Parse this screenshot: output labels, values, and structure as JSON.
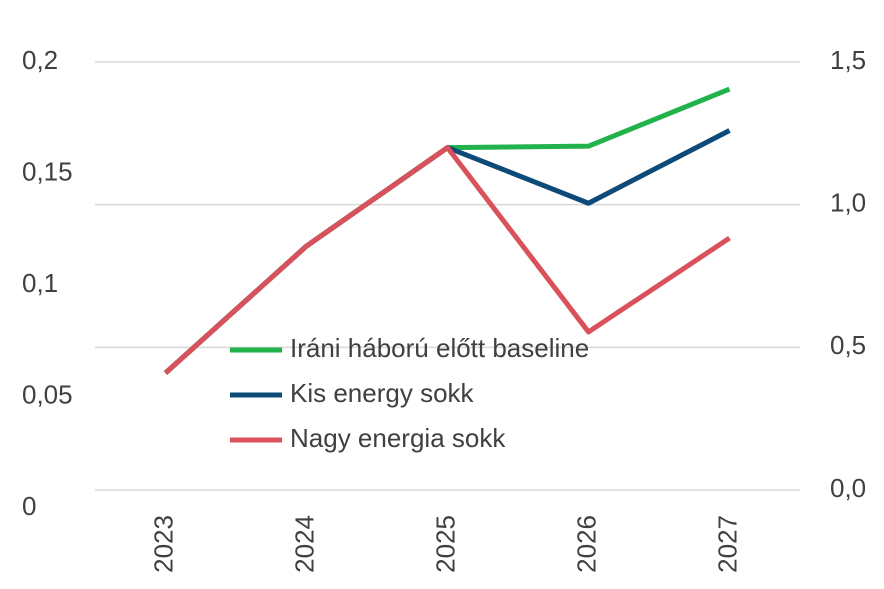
{
  "chart_data": {
    "type": "line",
    "categories": [
      "2023",
      "2024",
      "2025",
      "2026",
      "2027"
    ],
    "series": [
      {
        "name": "Iráni háború előtt baseline",
        "color": "#22b24c",
        "axis": "y2",
        "values": [
          0.41,
          0.855,
          1.2,
          1.205,
          1.405
        ]
      },
      {
        "name": "Kis energy sokk",
        "color": "#0e4a78",
        "axis": "y2",
        "values": [
          0.41,
          0.855,
          1.2,
          1.005,
          1.26
        ]
      },
      {
        "name": "Nagy energia sokk",
        "color": "#d9515a",
        "axis": "y2",
        "values": [
          0.41,
          0.855,
          1.2,
          0.554,
          0.883
        ]
      }
    ],
    "ylim": [
      0,
      0.2
    ],
    "yticks": [
      0,
      {
        "value": 0.05,
        "label": "0,05"
      },
      {
        "value": 0.1,
        "label": "0,1"
      },
      {
        "value": 0.15,
        "label": "0,15"
      },
      {
        "value": 0.2,
        "label": "0,2"
      }
    ],
    "y2lim": [
      0,
      1.5
    ],
    "y2ticks": [
      {
        "value": 0,
        "label": "0,0"
      },
      {
        "value": 0.5,
        "label": "0,5"
      },
      {
        "value": 1,
        "label": "1,0"
      },
      {
        "value": 1.5,
        "label": "1,5"
      }
    ],
    "grid": true
  }
}
